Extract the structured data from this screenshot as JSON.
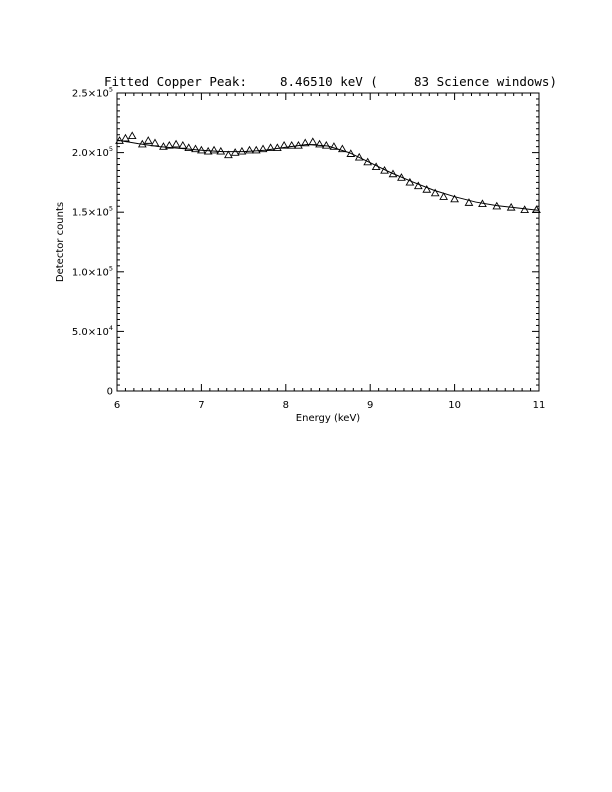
{
  "chart_data": {
    "type": "scatter",
    "title": {
      "label": "Fitted Copper Peak:",
      "energy": "8.46510 keV (",
      "windows": "83 Science windows)"
    },
    "xlabel": "Energy (keV)",
    "ylabel": "Detector counts",
    "xlim": [
      6,
      11
    ],
    "ylim": [
      0,
      250000
    ],
    "x_ticks": [
      {
        "value": 6,
        "label": "6"
      },
      {
        "value": 7,
        "label": "7"
      },
      {
        "value": 8,
        "label": "8"
      },
      {
        "value": 9,
        "label": "9"
      },
      {
        "value": 10,
        "label": "10"
      },
      {
        "value": 11,
        "label": "11"
      }
    ],
    "y_ticks": [
      {
        "value": 0,
        "mant": "0",
        "exp": ""
      },
      {
        "value": 50000,
        "mant": "5.0×10",
        "exp": "4"
      },
      {
        "value": 100000,
        "mant": "1.0×10",
        "exp": "5"
      },
      {
        "value": 150000,
        "mant": "1.5×10",
        "exp": "5"
      },
      {
        "value": 200000,
        "mant": "2.0×10",
        "exp": "5"
      },
      {
        "value": 250000,
        "mant": "2.5×10",
        "exp": "5"
      }
    ],
    "series": [
      {
        "kind": "points",
        "marker": "triangle",
        "x": [
          6.03,
          6.1,
          6.18,
          6.3,
          6.37,
          6.45,
          6.55,
          6.62,
          6.7,
          6.78,
          6.85,
          6.93,
          7.0,
          7.08,
          7.15,
          7.23,
          7.32,
          7.4,
          7.48,
          7.57,
          7.65,
          7.73,
          7.82,
          7.9,
          7.98,
          8.07,
          8.15,
          8.23,
          8.32,
          8.4,
          8.48,
          8.57,
          8.67,
          8.77,
          8.87,
          8.97,
          9.07,
          9.17,
          9.27,
          9.37,
          9.47,
          9.57,
          9.67,
          9.77,
          9.87,
          10.0,
          10.17,
          10.33,
          10.5,
          10.67,
          10.83,
          10.97
        ],
        "y": [
          210000,
          212000,
          214000,
          207000,
          210000,
          208000,
          205000,
          206000,
          207000,
          206000,
          204000,
          203000,
          202000,
          201000,
          202000,
          201000,
          198000,
          200000,
          201000,
          202000,
          202000,
          203000,
          204000,
          204000,
          206000,
          206000,
          206000,
          208000,
          209000,
          207000,
          206000,
          205000,
          203000,
          199000,
          196000,
          192000,
          188000,
          185000,
          182000,
          179000,
          175000,
          172000,
          169000,
          166000,
          163000,
          161000,
          158000,
          157000,
          155000,
          154000,
          152000,
          152000
        ]
      },
      {
        "kind": "line",
        "x": [
          6.0,
          6.25,
          6.5,
          6.75,
          7.0,
          7.25,
          7.5,
          7.75,
          8.0,
          8.25,
          8.5,
          8.75,
          9.0,
          9.25,
          9.5,
          9.75,
          10.0,
          10.25,
          10.5,
          10.75,
          11.0
        ],
        "y": [
          210500,
          207500,
          205000,
          203500,
          202000,
          200800,
          200800,
          202000,
          204500,
          206800,
          205500,
          200000,
          191500,
          183000,
          175500,
          168500,
          163000,
          158500,
          155500,
          153500,
          151500
        ]
      }
    ]
  }
}
